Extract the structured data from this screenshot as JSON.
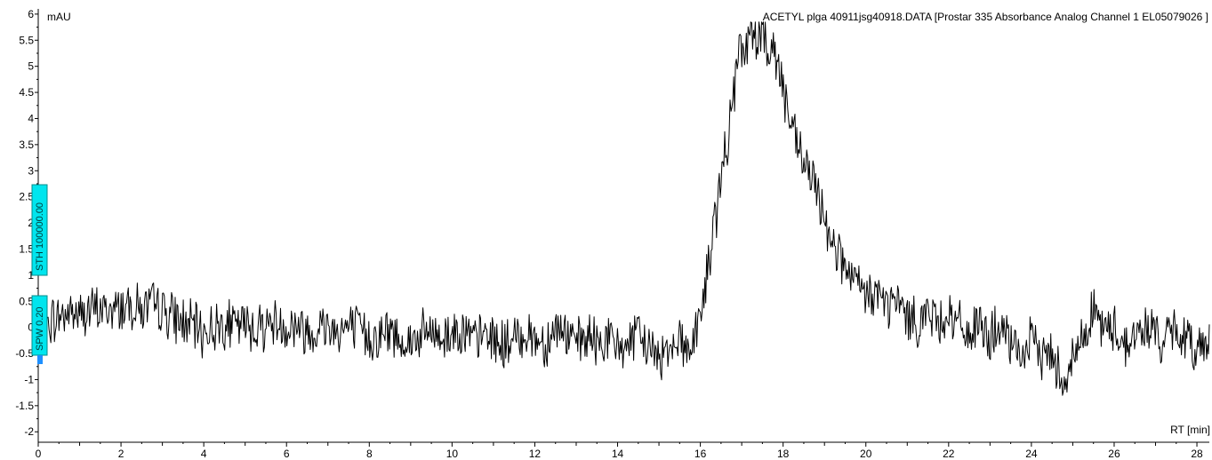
{
  "chart_data": {
    "type": "line",
    "title": "ACETYL plga 40911jsg40918.DATA [Prostar 335 Absorbance Analog Channel 1 EL05079026         ]",
    "ylabel": "mAU",
    "xlabel": "RT [min]",
    "xlim": [
      0,
      28.3
    ],
    "ylim": [
      -2.2,
      6.1
    ],
    "grid": false,
    "x_ticks": [
      0,
      2,
      4,
      6,
      8,
      10,
      12,
      14,
      16,
      18,
      20,
      22,
      24,
      26,
      28
    ],
    "y_ticks": [
      -2,
      -1.5,
      -1,
      -0.5,
      0,
      0.5,
      1,
      1.5,
      2,
      2.5,
      3,
      3.5,
      4,
      4.5,
      5,
      5.5,
      6
    ],
    "y_tick_labels": [
      "-2",
      "-1.5",
      "-1",
      "-0.5",
      "0",
      "0.5",
      "1",
      "1.5",
      "2",
      "2.5",
      "3",
      "3.5",
      "4",
      "4.5",
      "5",
      "5.5",
      "6"
    ],
    "series": [
      {
        "x": [
          0,
          0.25,
          0.5,
          0.75,
          1.0,
          1.25,
          1.5,
          1.75,
          2.0,
          2.25,
          2.5,
          2.75,
          3.0,
          3.25,
          3.5,
          3.75,
          4.0,
          4.25,
          4.5,
          4.75,
          5.0,
          5.25,
          5.5,
          5.75,
          6.0,
          6.25,
          6.5,
          6.75,
          7.0,
          7.25,
          7.5,
          7.75,
          8.0,
          8.25,
          8.5,
          8.75,
          9.0,
          9.25,
          9.5,
          9.75,
          10.0,
          10.25,
          10.5,
          10.75,
          11.0,
          11.25,
          11.5,
          11.75,
          12.0,
          12.25,
          12.5,
          12.75,
          13.0,
          13.25,
          13.5,
          13.75,
          14.0,
          14.25,
          14.5,
          14.75,
          15.0,
          15.25,
          15.5,
          15.75,
          16.0,
          16.2,
          16.4,
          16.6,
          16.8,
          16.95,
          17.1,
          17.25,
          17.4,
          17.55,
          17.7,
          17.85,
          18.0,
          18.2,
          18.4,
          18.6,
          18.8,
          19.0,
          19.25,
          19.5,
          19.75,
          20.0,
          20.25,
          20.5,
          20.75,
          21.0,
          21.25,
          21.5,
          21.75,
          22.0,
          22.25,
          22.5,
          22.75,
          23.0,
          23.25,
          23.5,
          23.75,
          24.0,
          24.25,
          24.5,
          24.75,
          25.0,
          25.25,
          25.5,
          25.75,
          26.0,
          26.25,
          26.5,
          26.75,
          27.0,
          27.25,
          27.5,
          27.75,
          28.0,
          28.3
        ],
        "y": [
          0.0,
          0.1,
          0.2,
          0.3,
          0.25,
          0.3,
          0.35,
          0.3,
          0.4,
          0.45,
          0.35,
          0.4,
          0.35,
          0.2,
          0.1,
          0.0,
          -0.1,
          0.0,
          0.1,
          0.0,
          0.05,
          0.0,
          0.05,
          0.1,
          0.0,
          0.05,
          -0.1,
          0.0,
          0.05,
          -0.05,
          0.0,
          -0.05,
          -0.2,
          -0.15,
          -0.1,
          -0.2,
          -0.3,
          -0.15,
          -0.1,
          -0.2,
          -0.1,
          0.0,
          -0.3,
          -0.15,
          -0.2,
          -0.35,
          -0.25,
          -0.1,
          -0.2,
          -0.3,
          0.0,
          -0.1,
          -0.35,
          -0.2,
          -0.3,
          -0.2,
          -0.4,
          -0.3,
          -0.2,
          -0.35,
          -0.6,
          -0.3,
          -0.2,
          -0.45,
          0.2,
          1.2,
          2.3,
          3.3,
          4.4,
          5.2,
          5.5,
          5.4,
          5.8,
          5.6,
          5.5,
          5.1,
          4.6,
          3.8,
          3.3,
          3.0,
          2.6,
          2.1,
          1.6,
          1.1,
          0.8,
          0.6,
          0.7,
          0.4,
          0.5,
          0.2,
          0.1,
          0.3,
          0.1,
          0.3,
          0.0,
          -0.1,
          0.0,
          -0.2,
          0.0,
          -0.4,
          -0.5,
          -0.3,
          -0.5,
          -0.5,
          -1.0,
          -0.6,
          -0.2,
          0.4,
          -0.1,
          0.0,
          -0.3,
          -0.2,
          0.0,
          -0.1,
          -0.3,
          0.0,
          -0.3,
          -0.4,
          -0.2
        ]
      }
    ],
    "markers": [
      {
        "label": "STH 100000.00"
      },
      {
        "label": "SPW 0.20"
      }
    ]
  }
}
